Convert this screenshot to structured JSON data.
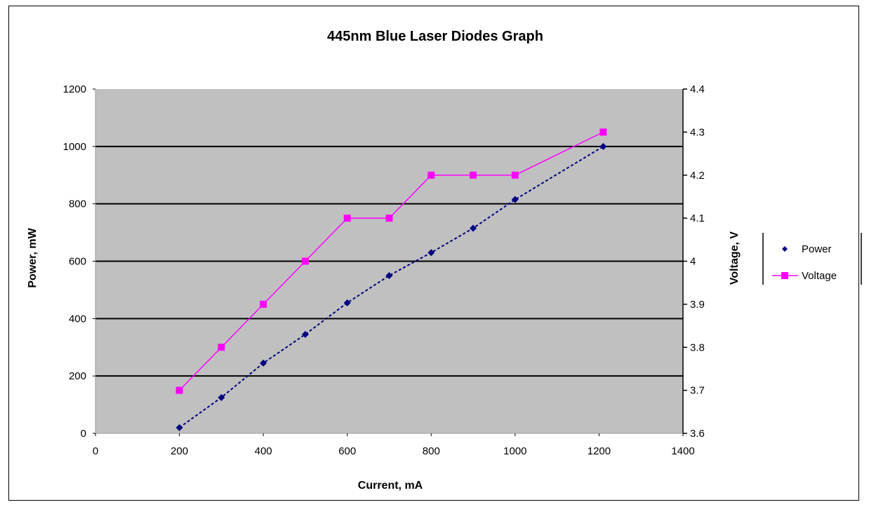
{
  "chart_data": {
    "type": "line",
    "title": "445nm Blue Laser Diodes Graph",
    "xlabel": "Current, mA",
    "ylabel": "Power, mW",
    "y2label": "Voltage, V",
    "xlim": [
      0,
      1400
    ],
    "ylim": [
      0,
      1200
    ],
    "y2lim": [
      3.6,
      4.4
    ],
    "x_ticks": [
      "0",
      "200",
      "400",
      "600",
      "800",
      "1000",
      "1200",
      "1400"
    ],
    "y_ticks": [
      "0",
      "200",
      "400",
      "600",
      "800",
      "1000",
      "1200"
    ],
    "y2_ticks": [
      "3.6",
      "3.7",
      "3.8",
      "3.9",
      "4",
      "4.1",
      "4.2",
      "4.3",
      "4.4"
    ],
    "grid": "horizontal major gridlines (left axis)",
    "legend_position": "right",
    "plot_background": "#c0c0c0",
    "series": [
      {
        "name": "Power",
        "axis": "left",
        "color": "#000080",
        "marker": "diamond",
        "line": "dashed",
        "x": [
          200,
          300,
          400,
          500,
          600,
          700,
          800,
          900,
          1000,
          1210
        ],
        "y": [
          20,
          125,
          245,
          345,
          455,
          550,
          630,
          715,
          815,
          1000
        ]
      },
      {
        "name": "Voltage",
        "axis": "right",
        "color": "#ff00ff",
        "marker": "square",
        "line": "solid",
        "x": [
          200,
          300,
          400,
          500,
          600,
          700,
          800,
          900,
          1000,
          1210
        ],
        "y": [
          3.7,
          3.8,
          3.9,
          4.0,
          4.1,
          4.1,
          4.2,
          4.2,
          4.2,
          4.3
        ]
      }
    ]
  }
}
